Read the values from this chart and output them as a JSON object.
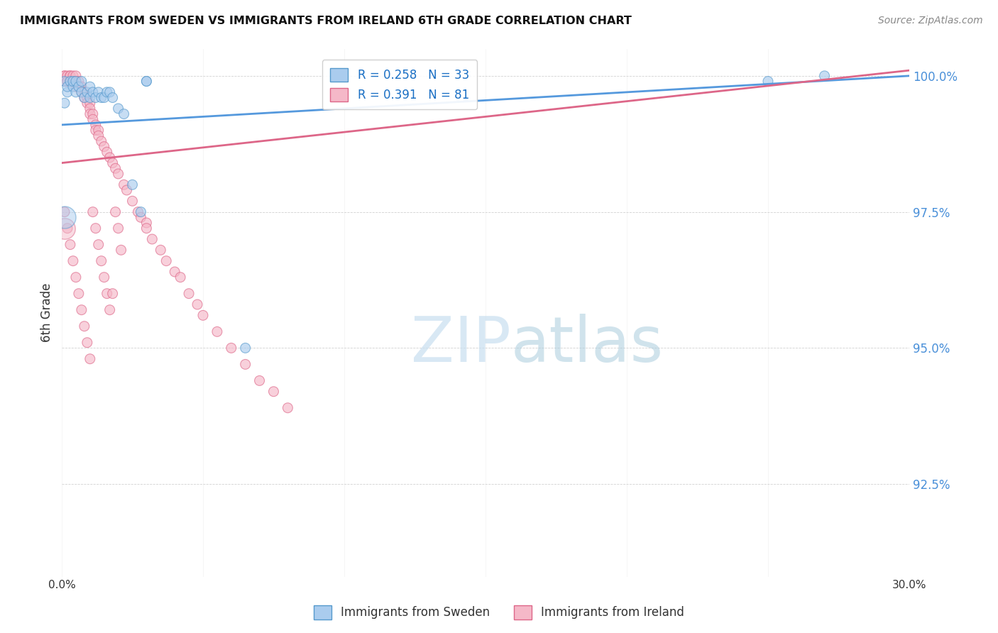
{
  "title": "IMMIGRANTS FROM SWEDEN VS IMMIGRANTS FROM IRELAND 6TH GRADE CORRELATION CHART",
  "source": "Source: ZipAtlas.com",
  "ylabel": "6th Grade",
  "xlim": [
    0.0,
    0.3
  ],
  "ylim": [
    0.908,
    1.005
  ],
  "xticks": [
    0.0,
    0.05,
    0.1,
    0.15,
    0.2,
    0.25,
    0.3
  ],
  "xticklabels": [
    "0.0%",
    "",
    "",
    "",
    "",
    "",
    "30.0%"
  ],
  "yticks": [
    0.925,
    0.95,
    0.975,
    1.0
  ],
  "yticklabels": [
    "92.5%",
    "95.0%",
    "97.5%",
    "100.0%"
  ],
  "sweden_fill": "#aaccee",
  "sweden_edge": "#5599cc",
  "ireland_fill": "#f5b8c8",
  "ireland_edge": "#dd6688",
  "trend_sweden": "#5599dd",
  "trend_ireland": "#dd6688",
  "legend_label_sweden": "R = 0.258   N = 33",
  "legend_label_ireland": "R = 0.391   N = 81",
  "watermark_color": "#ddeeff",
  "sw_x": [
    0.001,
    0.001,
    0.002,
    0.002,
    0.003,
    0.004,
    0.004,
    0.005,
    0.005,
    0.006,
    0.007,
    0.007,
    0.008,
    0.009,
    0.01,
    0.01,
    0.011,
    0.012,
    0.013,
    0.014,
    0.015,
    0.016,
    0.017,
    0.018,
    0.02,
    0.022,
    0.025,
    0.028,
    0.03,
    0.03,
    0.065,
    0.25,
    0.27
  ],
  "sw_y": [
    0.995,
    0.999,
    0.997,
    0.998,
    0.999,
    0.998,
    0.999,
    0.997,
    0.999,
    0.998,
    0.997,
    0.999,
    0.996,
    0.997,
    0.996,
    0.998,
    0.997,
    0.996,
    0.997,
    0.996,
    0.996,
    0.997,
    0.997,
    0.996,
    0.994,
    0.993,
    0.98,
    0.975,
    0.999,
    0.999,
    0.95,
    0.999,
    1.0
  ],
  "sw_sizes": [
    80,
    80,
    80,
    80,
    80,
    80,
    80,
    80,
    80,
    80,
    80,
    80,
    80,
    80,
    80,
    80,
    80,
    80,
    80,
    80,
    80,
    80,
    80,
    80,
    80,
    80,
    80,
    80,
    80,
    80,
    80,
    80,
    80
  ],
  "sw_big_idx": [
    0
  ],
  "ir_x": [
    0.001,
    0.001,
    0.001,
    0.002,
    0.002,
    0.002,
    0.003,
    0.003,
    0.003,
    0.004,
    0.004,
    0.004,
    0.005,
    0.005,
    0.005,
    0.006,
    0.006,
    0.007,
    0.007,
    0.008,
    0.008,
    0.009,
    0.009,
    0.01,
    0.01,
    0.01,
    0.011,
    0.011,
    0.012,
    0.012,
    0.013,
    0.013,
    0.014,
    0.015,
    0.016,
    0.017,
    0.018,
    0.019,
    0.02,
    0.022,
    0.023,
    0.025,
    0.027,
    0.028,
    0.03,
    0.03,
    0.032,
    0.035,
    0.037,
    0.04,
    0.042,
    0.045,
    0.048,
    0.05,
    0.055,
    0.06,
    0.065,
    0.07,
    0.075,
    0.08,
    0.001,
    0.002,
    0.003,
    0.004,
    0.005,
    0.006,
    0.007,
    0.008,
    0.009,
    0.01,
    0.011,
    0.012,
    0.013,
    0.014,
    0.015,
    0.016,
    0.017,
    0.018,
    0.019,
    0.02,
    0.021
  ],
  "ir_y": [
    0.999,
    1.0,
    1.0,
    0.999,
    1.0,
    0.999,
    1.0,
    0.999,
    1.0,
    0.999,
    1.0,
    0.999,
    1.0,
    0.999,
    0.998,
    0.999,
    0.998,
    0.998,
    0.997,
    0.997,
    0.996,
    0.996,
    0.995,
    0.995,
    0.994,
    0.993,
    0.993,
    0.992,
    0.991,
    0.99,
    0.99,
    0.989,
    0.988,
    0.987,
    0.986,
    0.985,
    0.984,
    0.983,
    0.982,
    0.98,
    0.979,
    0.977,
    0.975,
    0.974,
    0.973,
    0.972,
    0.97,
    0.968,
    0.966,
    0.964,
    0.963,
    0.96,
    0.958,
    0.956,
    0.953,
    0.95,
    0.947,
    0.944,
    0.942,
    0.939,
    0.975,
    0.972,
    0.969,
    0.966,
    0.963,
    0.96,
    0.957,
    0.954,
    0.951,
    0.948,
    0.975,
    0.972,
    0.969,
    0.966,
    0.963,
    0.96,
    0.957,
    0.96,
    0.975,
    0.972,
    0.968
  ]
}
